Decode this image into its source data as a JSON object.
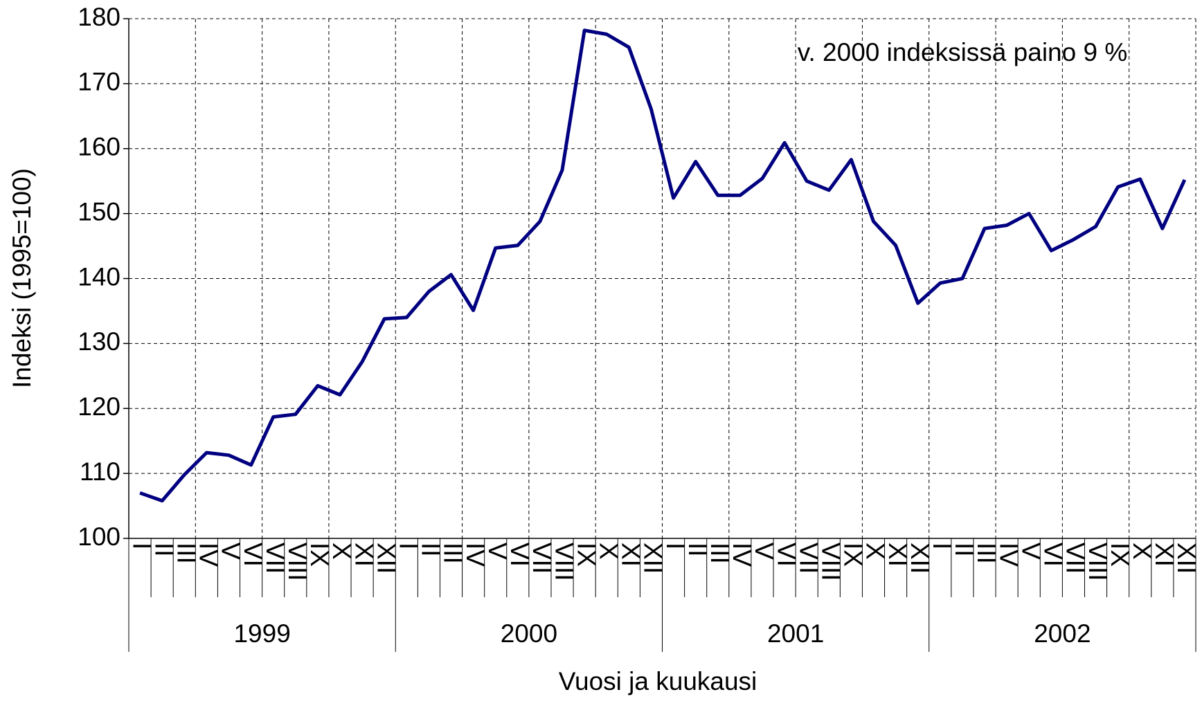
{
  "chart_data": {
    "type": "line",
    "ylabel": "Indeksi (1995=100)",
    "xlabel": "Vuosi ja kuukausi",
    "annotation": "v. 2000 indeksissä paino 9 %",
    "categories": [
      "I",
      "II",
      "III",
      "IV",
      "V",
      "VI",
      "VII",
      "VIII",
      "IX",
      "X",
      "XI",
      "XII",
      "I",
      "II",
      "III",
      "IV",
      "V",
      "VI",
      "VII",
      "VIII",
      "IX",
      "X",
      "XI",
      "XII",
      "I",
      "II",
      "III",
      "IV",
      "V",
      "VI",
      "VII",
      "VIII",
      "IX",
      "X",
      "XI",
      "XII",
      "I",
      "II",
      "III",
      "IV",
      "V",
      "VI",
      "VII",
      "VIII",
      "IX",
      "X",
      "XI",
      "XII"
    ],
    "groups": [
      "1999",
      "2000",
      "2001",
      "2002"
    ],
    "series": [
      {
        "color": "#000080",
        "values": [
          107,
          105.8,
          109.8,
          113.2,
          112.8,
          111.3,
          118.7,
          119.1,
          123.5,
          122.1,
          127.2,
          133.8,
          134,
          138,
          140.6,
          135.1,
          144.7,
          145.1,
          148.8,
          156.7,
          178.2,
          177.6,
          175.6,
          166.1,
          152.4,
          158,
          152.8,
          152.8,
          155.4,
          160.9,
          155,
          153.6,
          158.3,
          148.8,
          145.1,
          136.2,
          139.3,
          140,
          147.7,
          148.2,
          150,
          144.3,
          146,
          148,
          154.1,
          155.3,
          147.7,
          155.2
        ]
      }
    ],
    "ylim": [
      100,
      180
    ],
    "yticks": [
      100,
      110,
      120,
      130,
      140,
      150,
      160,
      170,
      180
    ],
    "grid": true
  }
}
